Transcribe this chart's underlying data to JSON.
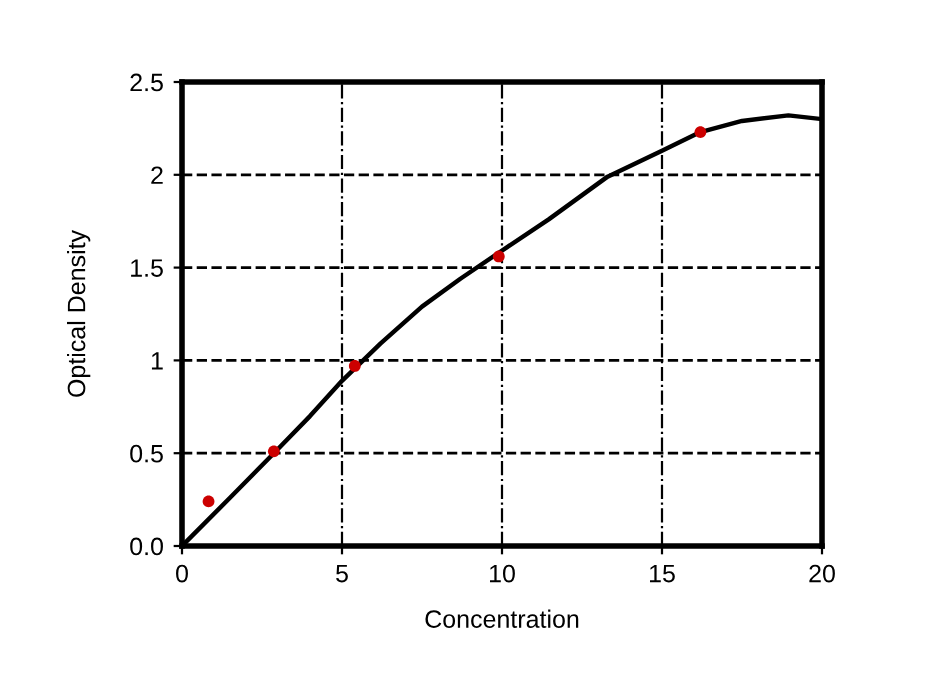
{
  "chart_data": {
    "type": "line",
    "xlabel": "Concentration",
    "ylabel": "Optical Density",
    "series": [
      {
        "color": "#000000",
        "marker": "none",
        "x": [
          0,
          1.5,
          2.87,
          4.0,
          5.0,
          6.2,
          7.5,
          8.7,
          9.9,
          11.46,
          13.3,
          15,
          16.2,
          17.5,
          18.95,
          20
        ],
        "values": [
          0,
          0.26,
          0.5,
          0.7,
          0.89,
          1.09,
          1.29,
          1.44,
          1.58,
          1.76,
          1.99,
          2.13,
          2.23,
          2.29,
          2.32,
          2.3
        ]
      },
      {
        "type": "scatter",
        "marker": "circle",
        "color": "#cc0000",
        "x": [
          0.83,
          2.87,
          5.4,
          9.9,
          16.2
        ],
        "values": [
          0.24,
          0.51,
          0.97,
          1.56,
          2.23
        ]
      }
    ],
    "xlim": [
      0,
      20
    ],
    "ylim": [
      0,
      2.5
    ],
    "xticks": [
      0,
      5,
      10,
      15,
      20
    ],
    "yticks": [
      {
        "value": 0,
        "label": "0.0"
      },
      0.5,
      1,
      1.5,
      2,
      2.5
    ],
    "grid": true,
    "line_style": "solid"
  }
}
